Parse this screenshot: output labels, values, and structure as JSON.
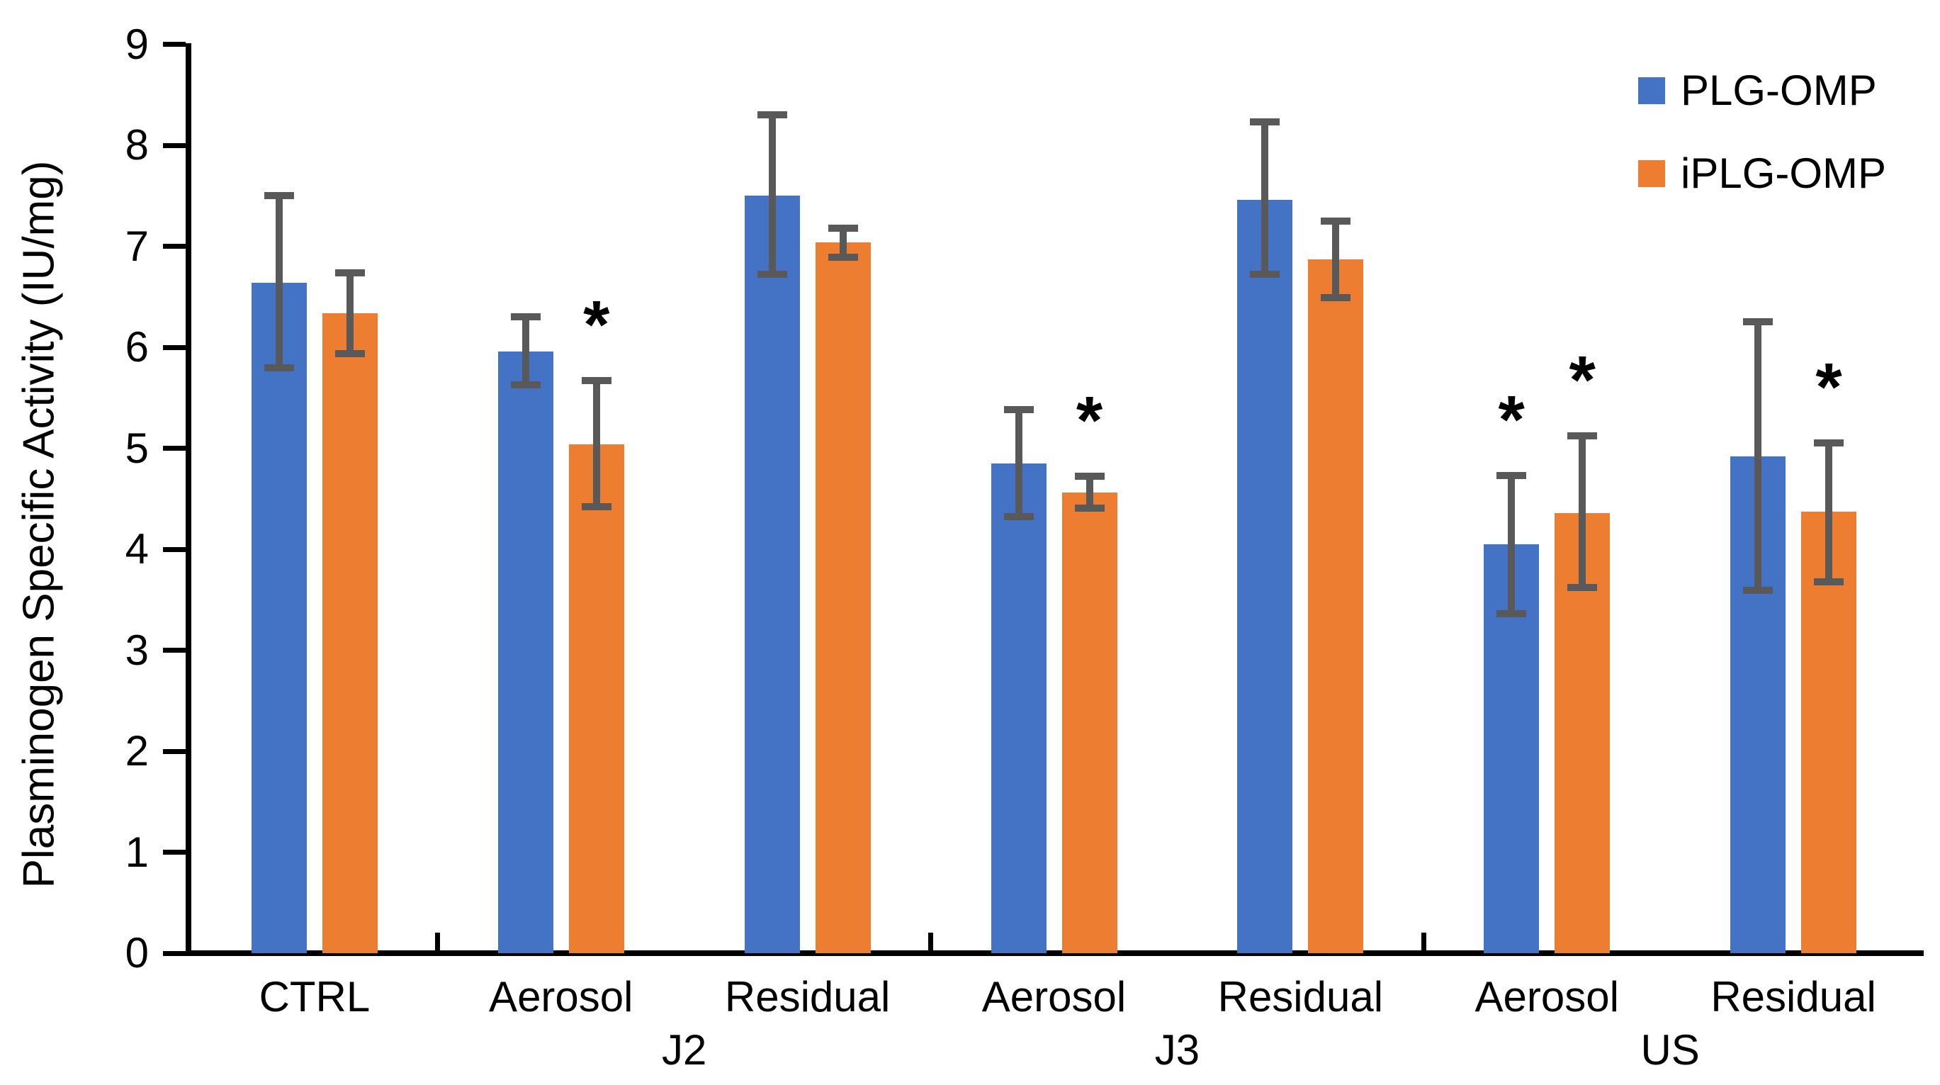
{
  "chart_data": {
    "type": "bar",
    "title": "",
    "ylabel": "Plasminogen Specific Activity (IU/mg)",
    "xlabel": "",
    "ylim": [
      0,
      9
    ],
    "yticks": [
      0,
      1,
      2,
      3,
      4,
      5,
      6,
      7,
      8,
      9
    ],
    "grid": false,
    "legend_position": "top-right",
    "sig_marker": "*",
    "axis_color": "#000000",
    "error_bar_color": "#595959",
    "categories": [
      "CTRL",
      "Aerosol",
      "Residual",
      "Aerosol",
      "Residual",
      "Aerosol",
      "Residual"
    ],
    "groups": [
      {
        "label": "",
        "start": 0,
        "count": 1
      },
      {
        "label": "J2",
        "start": 1,
        "count": 2
      },
      {
        "label": "J3",
        "start": 3,
        "count": 2
      },
      {
        "label": "US",
        "start": 5,
        "count": 2
      }
    ],
    "series": [
      {
        "name": "PLG-OMP",
        "color": "#4472C4",
        "values": [
          6.64,
          5.96,
          7.5,
          4.85,
          7.46,
          4.05,
          4.92
        ],
        "err_lo": [
          5.8,
          5.63,
          6.72,
          4.32,
          6.72,
          3.36,
          3.59
        ],
        "err_hi": [
          7.5,
          6.3,
          8.3,
          5.38,
          8.23,
          4.73,
          6.25
        ],
        "sig": [
          false,
          false,
          false,
          false,
          false,
          true,
          false
        ]
      },
      {
        "name": "iPLG-OMP",
        "color": "#ED7D31",
        "values": [
          6.34,
          5.04,
          7.04,
          4.56,
          6.87,
          4.36,
          4.37
        ],
        "err_lo": [
          5.94,
          4.42,
          6.89,
          4.41,
          6.49,
          3.62,
          3.68
        ],
        "err_hi": [
          6.74,
          5.67,
          7.18,
          4.72,
          7.25,
          5.12,
          5.05
        ],
        "sig": [
          false,
          true,
          false,
          true,
          false,
          true,
          true
        ]
      }
    ]
  }
}
